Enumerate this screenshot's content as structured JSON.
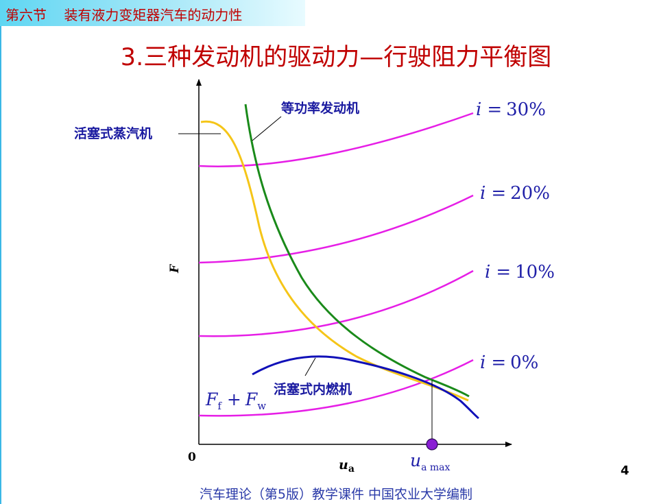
{
  "header": {
    "section": "第六节",
    "topic": "装有液力变矩器汽车的动力性"
  },
  "title": "3.三种发动机的驱动力—行驶阻力平衡图",
  "page_number": "4",
  "footer": "汽车理论（第5版）教学课件   中国农业大学编制",
  "colors": {
    "resistance": "#e61ee6",
    "constant_power": "#1a8a1a",
    "steam": "#f5c518",
    "ice": "#1010b8",
    "label": "#1a1aa0",
    "grade_label": "#2020a8",
    "title": "#c00000"
  },
  "chart_data": {
    "type": "line",
    "xlabel": "u",
    "xlabel_sub": "a",
    "ylabel": "F",
    "origin_label": "0",
    "marker_label": "u",
    "marker_label_sub": "a max",
    "resistance_label": {
      "f1": "F",
      "s1": "f",
      "plus": "+",
      "f2": "F",
      "s2": "w"
    },
    "series": [
      {
        "name": "i = 30%",
        "var": "i",
        "eq": "=",
        "val": "30%"
      },
      {
        "name": "i = 20%",
        "var": "i",
        "eq": "=",
        "val": "20%"
      },
      {
        "name": "i = 10%",
        "var": "i",
        "eq": "=",
        "val": "10%"
      },
      {
        "name": "i = 0%",
        "var": "i",
        "eq": "=",
        "val": "0%"
      },
      {
        "name": "等功率发动机"
      },
      {
        "name": "活塞式蒸汽机"
      },
      {
        "name": "活塞式内燃机"
      }
    ]
  }
}
